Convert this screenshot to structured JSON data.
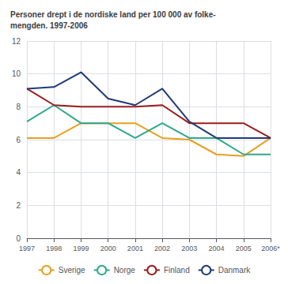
{
  "chart_data": {
    "type": "line",
    "title": "Personer drept i de nordiske land per 100 000 av folke-\nmengden. 1997-2006",
    "categories": [
      "1997",
      "1998",
      "1999",
      "2000",
      "2001",
      "2002",
      "2003",
      "2004",
      "2005",
      "2006*"
    ],
    "series": [
      {
        "name": "Sverige",
        "color": "#E8A020",
        "values": [
          6.1,
          6.1,
          7.0,
          7.0,
          7.0,
          6.1,
          6.0,
          5.1,
          5.0,
          6.1
        ]
      },
      {
        "name": "Norge",
        "color": "#2DA88C",
        "values": [
          7.1,
          8.1,
          7.0,
          7.0,
          6.1,
          7.0,
          6.1,
          6.1,
          5.1,
          5.1
        ]
      },
      {
        "name": "Finland",
        "color": "#9B1C1C",
        "values": [
          9.1,
          8.1,
          8.0,
          8.0,
          8.0,
          8.1,
          7.0,
          7.0,
          7.0,
          6.1
        ]
      },
      {
        "name": "Danmark",
        "color": "#1F3A7A",
        "values": [
          9.1,
          9.2,
          10.1,
          8.5,
          8.1,
          9.1,
          7.1,
          6.1,
          6.1,
          6.1
        ]
      }
    ],
    "ylim": [
      0,
      12
    ],
    "yticks": [
      0,
      2,
      4,
      6,
      8,
      10,
      12
    ],
    "grid": true,
    "legend": "bottom"
  }
}
